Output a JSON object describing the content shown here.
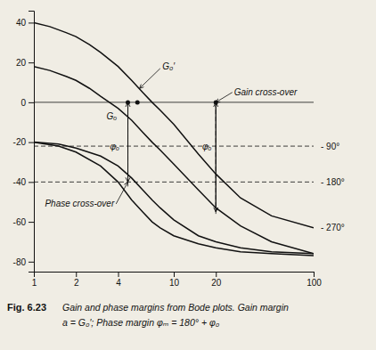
{
  "chart_data": {
    "type": "line",
    "log": "x",
    "title": "Fig. 6.23",
    "caption": [
      "Gain and phase margins from Bode plots. Gain margin",
      "a = G₀′; Phase margin φₘ = 180° + φ₀"
    ],
    "color": "#111111",
    "background": "#f0ede4",
    "xlim": [
      1,
      100
    ],
    "ylim": [
      -85,
      46
    ],
    "xticks": [
      1,
      2,
      4,
      10,
      20,
      100
    ],
    "yticks": [
      -80,
      -60,
      -40,
      -20,
      0,
      20,
      40
    ],
    "series": [
      {
        "x": [
          1,
          1.3,
          1.7,
          2,
          2.5,
          3,
          4,
          5,
          6,
          7,
          8,
          10,
          15,
          20,
          30,
          50,
          100
        ],
        "values": [
          40,
          38,
          35,
          33,
          29,
          25,
          18,
          11,
          5,
          0,
          -4,
          -11,
          -26,
          -36,
          -48,
          -57,
          -63
        ]
      },
      {
        "x": [
          1,
          1.3,
          1.7,
          2,
          2.5,
          3,
          4,
          5,
          6,
          7,
          8,
          10,
          15,
          20,
          30,
          50,
          100
        ],
        "values": [
          18,
          16,
          13,
          11,
          7,
          3,
          -3,
          -9,
          -15,
          -20,
          -24,
          -31,
          -44,
          -53,
          -62,
          -70,
          -76
        ]
      },
      {
        "x": [
          1,
          1.5,
          2,
          3,
          4,
          5,
          6,
          7,
          8,
          10,
          15,
          20,
          30,
          50,
          100
        ],
        "values": [
          -20,
          -21,
          -23,
          -27,
          -32,
          -38,
          -44,
          -49,
          -53,
          -59,
          -67,
          -70,
          -73,
          -75,
          -76
        ]
      },
      {
        "x": [
          1,
          1.5,
          2,
          3,
          4,
          5,
          6,
          7,
          8,
          10,
          15,
          20,
          30,
          50,
          100
        ],
        "values": [
          -20,
          -22,
          -25,
          -32,
          -40,
          -49,
          -55,
          -60,
          -63,
          -67,
          -71,
          -73,
          -75,
          -76,
          -77
        ]
      }
    ],
    "hlines": [
      {
        "y": 0,
        "line_style": "solid"
      },
      {
        "y": -40,
        "line_style": "dashed"
      },
      {
        "y": -22,
        "line_style": "dashed"
      }
    ],
    "vlines": [
      {
        "x": 4.7,
        "y": [
          -40,
          0
        ],
        "line_style": "dashed"
      },
      {
        "x": 20,
        "y": [
          -56,
          0
        ],
        "line_style": "dashed"
      }
    ],
    "points": [
      {
        "x": 4.7,
        "y": 0
      },
      {
        "x": 5.5,
        "y": 0
      },
      {
        "x": 20,
        "y": 0
      }
    ],
    "arrows": [
      {
        "from": [
          4.7,
          -1
        ],
        "to": [
          4.7,
          -40
        ]
      },
      {
        "from": [
          4.7,
          -39
        ],
        "to": [
          4.7,
          0
        ]
      },
      {
        "from": [
          20,
          -1
        ],
        "to": [
          20,
          -55
        ]
      },
      {
        "from": [
          20,
          -54
        ],
        "to": [
          20,
          0
        ]
      }
    ],
    "annotations": [
      {
        "text": "G₀′",
        "x": 8.3,
        "y": 18,
        "arrow_from": [
          8.0,
          17
        ],
        "arrow_to": [
          5.7,
          7
        ]
      },
      {
        "text": "Gₒ",
        "x": 3.3,
        "y": -7
      },
      {
        "text": "φₒ",
        "x": 3.5,
        "y": -22
      },
      {
        "text": "φₒ",
        "x": 16,
        "y": -22
      },
      {
        "text": "Gain cross-over",
        "x": 27,
        "y": 5,
        "arrow_to": [
          20,
          0
        ]
      },
      {
        "text": "Phase cross-over",
        "x": 1.2,
        "y": -51,
        "arrow_to": [
          4.7,
          -40
        ]
      }
    ],
    "right_labels": [
      {
        "y": -22,
        "label": "- 90°"
      },
      {
        "y": -40,
        "label": "- 180°"
      },
      {
        "y": -63,
        "label": "- 270°"
      }
    ]
  }
}
